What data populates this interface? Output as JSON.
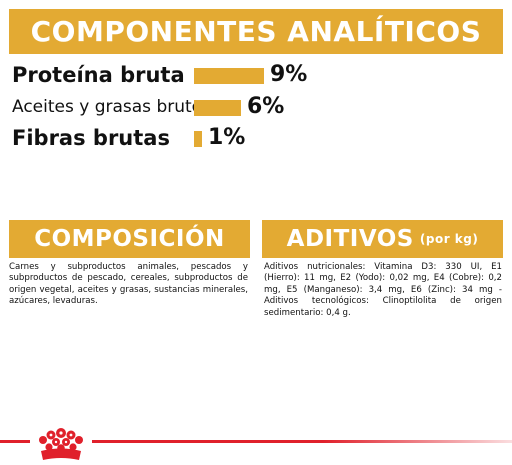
{
  "analytic": {
    "title": "COMPONENTES ANALÍTICOS",
    "rows": [
      {
        "label": "Proteína bruta",
        "value": "9%"
      },
      {
        "label": "Aceites y grasas brutos",
        "value": "6%"
      },
      {
        "label": "Fibras brutas",
        "value": "1%"
      }
    ],
    "bar_fraction_of_max": [
      1.0,
      0.667,
      0.111
    ]
  },
  "composition": {
    "title": "COMPOSICIÓN",
    "text": "Carnes y subproductos animales, pescados y subproductos de pescado, cereales, subproductos de origen vegetal, aceites y grasas, sustancias minerales, azúcares, levaduras."
  },
  "additives": {
    "title": "ADITIVOS",
    "title_suffix": "(por kg)",
    "text": "Aditivos nutricionales: Vitamina D3: 330 UI, E1 (Hierro): 11 mg, E2 (Yodo): 0,02 mg, E4 (Cobre): 0,2 mg, E5 (Manganeso): 3,4 mg, E6 (Zinc): 34 mg - Aditivos tecnológicos: Clinoptilolita de origen sedimentario: 0,4 g."
  },
  "colors": {
    "accent": "#e3aa33",
    "brand_red": "#e0202b"
  },
  "footer": {
    "logo_icon": "royal-canin-crown-icon"
  }
}
